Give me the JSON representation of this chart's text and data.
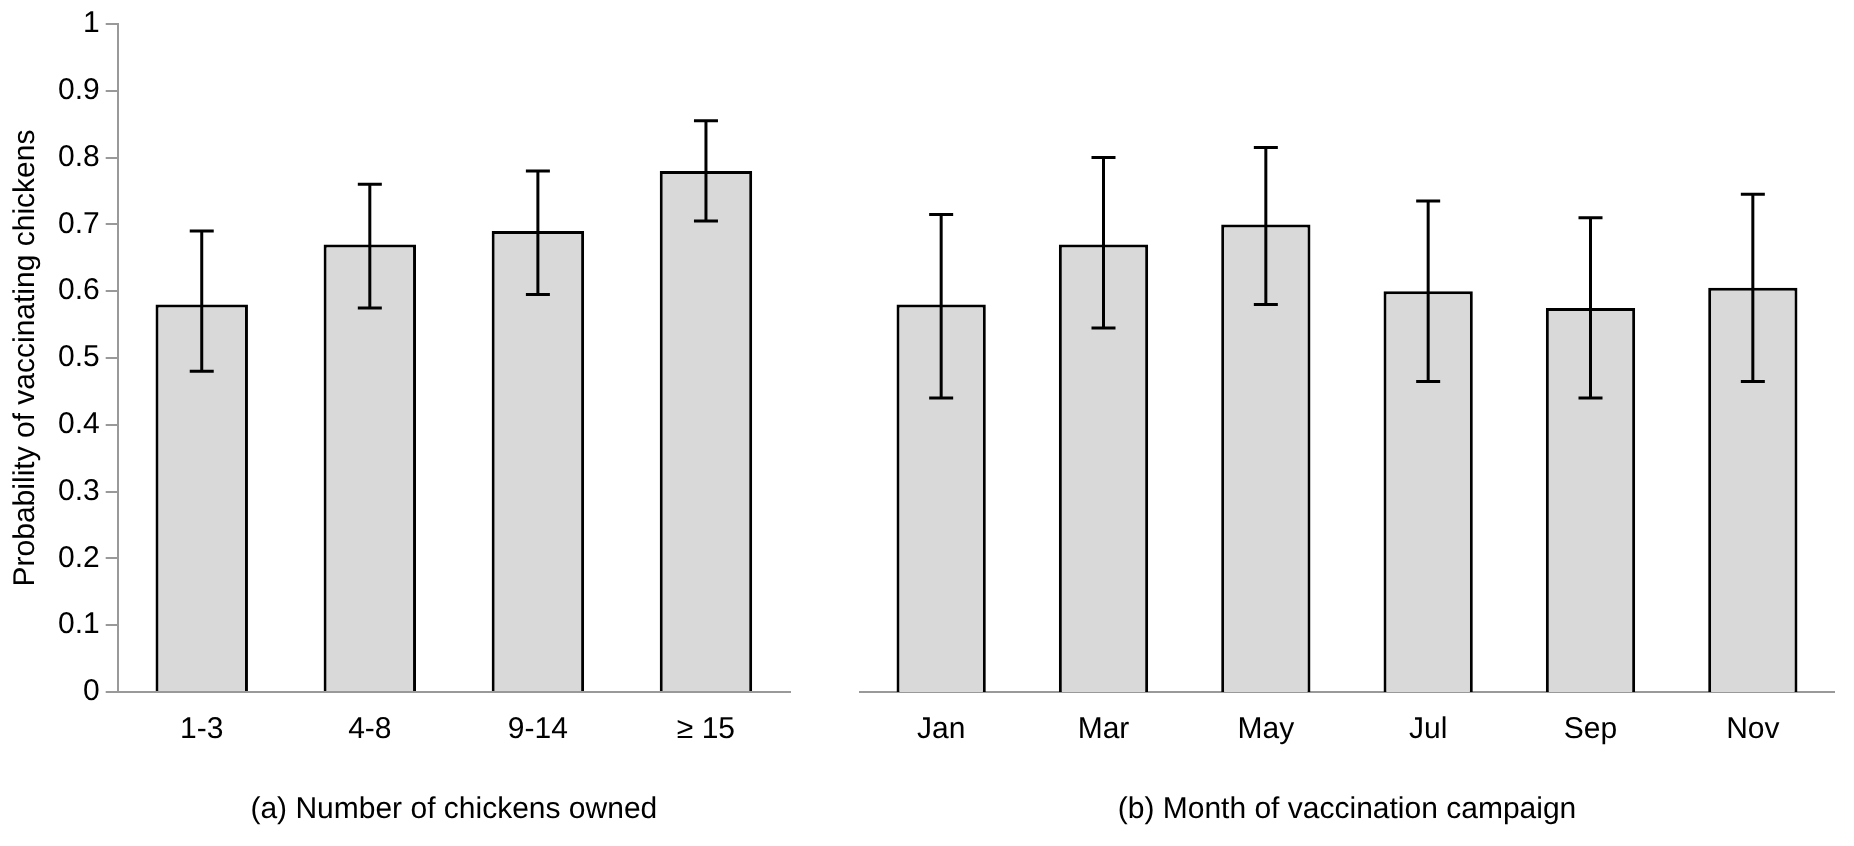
{
  "chart_data": [
    {
      "type": "bar",
      "xlabel": "(a) Number of chickens owned",
      "ylabel": "Probability of vaccinating chickens",
      "categories": [
        "1-3",
        "4-8",
        "9-14",
        "≥ 15"
      ],
      "values": [
        0.58,
        0.67,
        0.69,
        0.78
      ],
      "errors": [
        [
          0.48,
          0.69
        ],
        [
          0.575,
          0.76
        ],
        [
          0.595,
          0.78
        ],
        [
          0.705,
          0.855
        ]
      ],
      "color": "#d9d9d9",
      "ylim": [
        0,
        1
      ],
      "yticks": [
        0,
        0.1,
        0.2,
        0.3,
        0.4,
        0.5,
        0.6,
        0.7,
        0.8,
        0.9,
        1
      ],
      "grid": false,
      "legend": false
    },
    {
      "type": "bar",
      "xlabel": "(b) Month of vaccination campaign",
      "categories": [
        "Jan",
        "Mar",
        "May",
        "Jul",
        "Sep",
        "Nov"
      ],
      "values": [
        0.58,
        0.67,
        0.7,
        0.6,
        0.575,
        0.605
      ],
      "errors": [
        [
          0.44,
          0.715
        ],
        [
          0.545,
          0.8
        ],
        [
          0.58,
          0.815
        ],
        [
          0.465,
          0.735
        ],
        [
          0.44,
          0.71
        ],
        [
          0.465,
          0.745
        ]
      ],
      "color": "#d9d9d9",
      "ylim": [
        0,
        1
      ],
      "yticks": [
        0,
        0.1,
        0.2,
        0.3,
        0.4,
        0.5,
        0.6,
        0.7,
        0.8,
        0.9,
        1
      ],
      "grid": false,
      "legend": false,
      "tick_labels": "x"
    }
  ]
}
